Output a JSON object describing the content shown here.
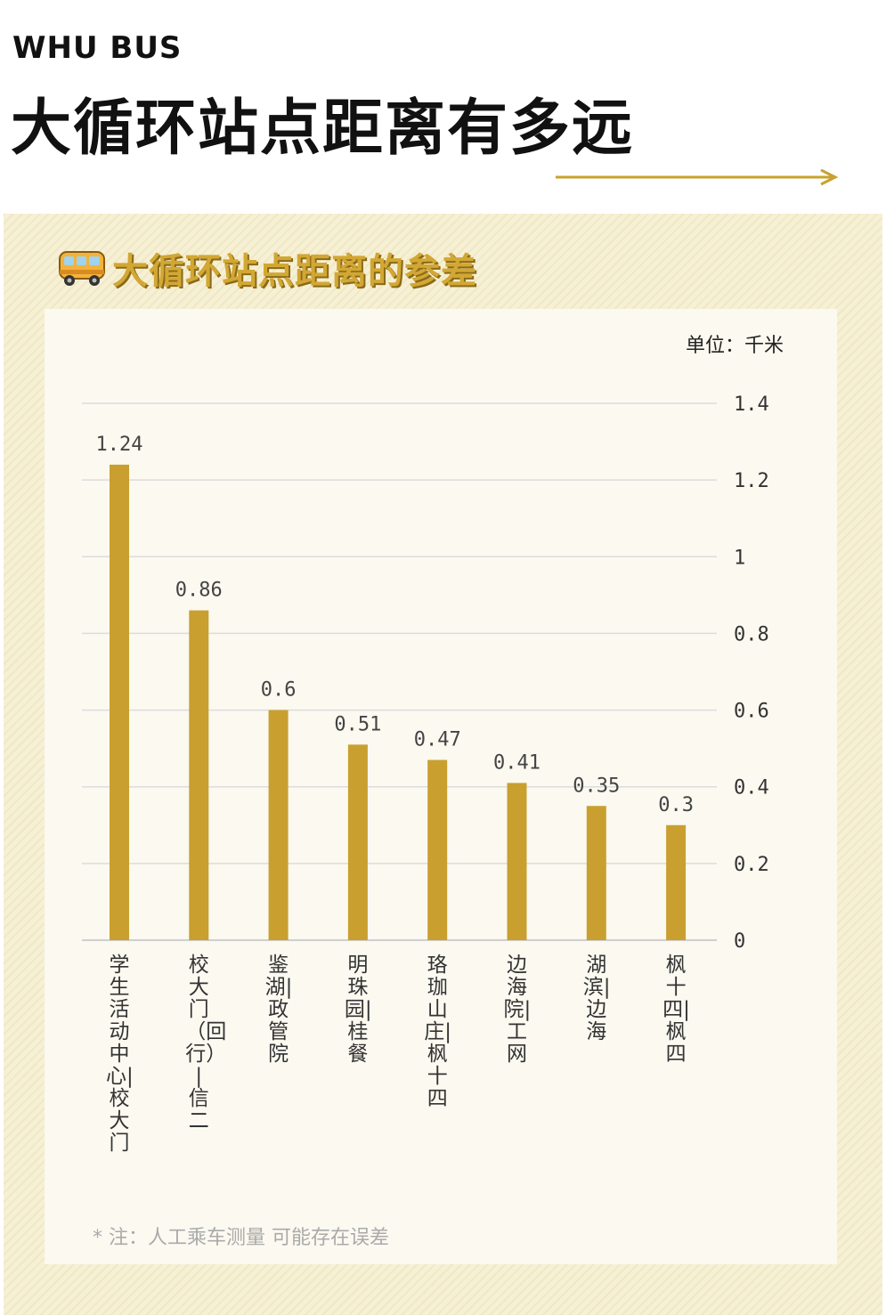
{
  "brand": "WHU BUS",
  "main_title": "大循环站点距离有多远",
  "subtitle": "大循环站点距离的参差",
  "unit_label": "单位：千米",
  "footnote": "* 注：人工乘车测量  可能存在误差",
  "icons": {
    "subtitle_icon": "bus-icon",
    "title_decoration": "arrow-right-icon"
  },
  "colors": {
    "bar": "#c9a02f",
    "accent": "#c8a12e",
    "subtitle": "#d2a733",
    "panel_bg": "#f6f0d5"
  },
  "chart_data": {
    "type": "bar",
    "categories": [
      "学生活动中心|校大门",
      "校大门（回行）|信二",
      "鉴湖|政管院",
      "明珠园|桂餐",
      "珞珈山庄|枫十四",
      "边海院|工网",
      "湖滨|边海",
      "枫十四|枫四"
    ],
    "values": [
      1.24,
      0.86,
      0.6,
      0.51,
      0.47,
      0.41,
      0.35,
      0.3
    ],
    "value_labels": [
      "1.24",
      "0.86",
      "0.6",
      "0.51",
      "0.47",
      "0.41",
      "0.35",
      "0.3"
    ],
    "y_ticks": [
      0,
      0.2,
      0.4,
      0.6,
      0.8,
      1,
      1.2,
      1.4
    ],
    "y_tick_labels": [
      "0",
      "0.2",
      "0.4",
      "0.6",
      "0.8",
      "1",
      "1.2",
      "1.4"
    ],
    "ylim": [
      0,
      1.4
    ],
    "y_axis_position": "right",
    "grid": true,
    "legend": "none"
  }
}
